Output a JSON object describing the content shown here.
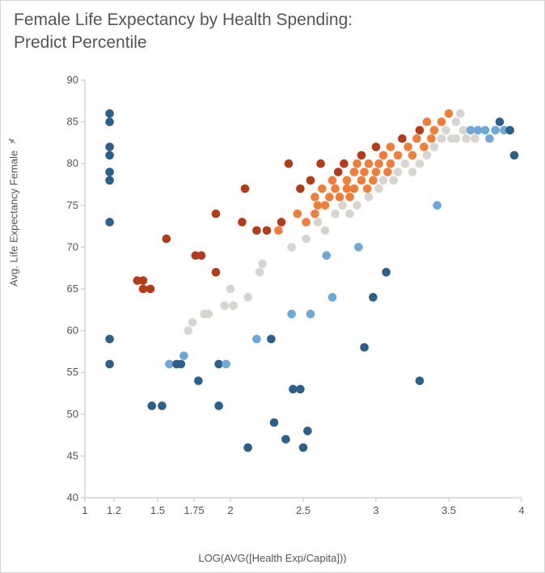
{
  "title_line1": "Female Life Expectancy by Health Spending:",
  "title_line2": "Predict Percentile",
  "xlabel": "LOG(AVG([Health Exp/Capita]))",
  "ylabel": "Avg. Life Expectancy Female",
  "chart": {
    "type": "scatter",
    "xlim": [
      1,
      4
    ],
    "ylim": [
      40,
      90
    ],
    "xticks": [
      1,
      1.2,
      1.5,
      1.75,
      2,
      2.5,
      3,
      3.5,
      4
    ],
    "yticks": [
      40,
      45,
      50,
      55,
      60,
      65,
      70,
      75,
      80,
      85,
      90
    ],
    "tick_length": 5,
    "marker_radius": 5.3,
    "marker_opacity": 1,
    "background_color": "#ffffff",
    "axis_color": "#bfbfbf",
    "tick_font_size": 13,
    "label_font_size": 13,
    "title_font_size": 21,
    "title_color": "#555555",
    "colors": {
      "dark_blue": "#2d5f8b",
      "light_blue": "#6fa8d6",
      "grey": "#d8d4cf",
      "orange": "#ee7e3b",
      "dark_red": "#b13c1a"
    },
    "points": [
      {
        "x": 1.17,
        "y": 86,
        "c": "dark_blue"
      },
      {
        "x": 1.17,
        "y": 85,
        "c": "dark_blue"
      },
      {
        "x": 1.17,
        "y": 82,
        "c": "dark_blue"
      },
      {
        "x": 1.17,
        "y": 81,
        "c": "dark_blue"
      },
      {
        "x": 1.17,
        "y": 79,
        "c": "dark_blue"
      },
      {
        "x": 1.17,
        "y": 78,
        "c": "dark_blue"
      },
      {
        "x": 1.17,
        "y": 73,
        "c": "dark_blue"
      },
      {
        "x": 1.17,
        "y": 59,
        "c": "dark_blue"
      },
      {
        "x": 1.17,
        "y": 56,
        "c": "dark_blue"
      },
      {
        "x": 1.36,
        "y": 66,
        "c": "dark_red"
      },
      {
        "x": 1.4,
        "y": 66,
        "c": "dark_red"
      },
      {
        "x": 1.4,
        "y": 65,
        "c": "dark_red"
      },
      {
        "x": 1.45,
        "y": 65,
        "c": "dark_red"
      },
      {
        "x": 1.46,
        "y": 51,
        "c": "dark_blue"
      },
      {
        "x": 1.53,
        "y": 51,
        "c": "dark_blue"
      },
      {
        "x": 1.56,
        "y": 71,
        "c": "dark_red"
      },
      {
        "x": 1.58,
        "y": 56,
        "c": "light_blue"
      },
      {
        "x": 1.63,
        "y": 56,
        "c": "dark_blue"
      },
      {
        "x": 1.68,
        "y": 57,
        "c": "light_blue"
      },
      {
        "x": 1.66,
        "y": 56,
        "c": "dark_blue"
      },
      {
        "x": 1.71,
        "y": 60,
        "c": "grey"
      },
      {
        "x": 1.74,
        "y": 61,
        "c": "grey"
      },
      {
        "x": 1.76,
        "y": 69,
        "c": "dark_red"
      },
      {
        "x": 1.8,
        "y": 69,
        "c": "dark_red"
      },
      {
        "x": 1.78,
        "y": 54,
        "c": "dark_blue"
      },
      {
        "x": 1.82,
        "y": 62,
        "c": "grey"
      },
      {
        "x": 1.85,
        "y": 62,
        "c": "grey"
      },
      {
        "x": 1.9,
        "y": 74,
        "c": "dark_red"
      },
      {
        "x": 1.9,
        "y": 67,
        "c": "dark_red"
      },
      {
        "x": 1.92,
        "y": 56,
        "c": "dark_blue"
      },
      {
        "x": 1.92,
        "y": 51,
        "c": "dark_blue"
      },
      {
        "x": 1.97,
        "y": 56,
        "c": "light_blue"
      },
      {
        "x": 1.96,
        "y": 63,
        "c": "grey"
      },
      {
        "x": 2.0,
        "y": 65,
        "c": "grey"
      },
      {
        "x": 2.02,
        "y": 63,
        "c": "grey"
      },
      {
        "x": 2.08,
        "y": 73,
        "c": "dark_red"
      },
      {
        "x": 2.1,
        "y": 77,
        "c": "dark_red"
      },
      {
        "x": 2.12,
        "y": 64,
        "c": "grey"
      },
      {
        "x": 2.12,
        "y": 46,
        "c": "dark_blue"
      },
      {
        "x": 2.18,
        "y": 59,
        "c": "light_blue"
      },
      {
        "x": 2.2,
        "y": 67,
        "c": "grey"
      },
      {
        "x": 2.18,
        "y": 72,
        "c": "dark_red"
      },
      {
        "x": 2.22,
        "y": 68,
        "c": "grey"
      },
      {
        "x": 2.25,
        "y": 72,
        "c": "dark_red"
      },
      {
        "x": 2.28,
        "y": 59,
        "c": "dark_blue"
      },
      {
        "x": 2.3,
        "y": 49,
        "c": "dark_blue"
      },
      {
        "x": 2.33,
        "y": 72,
        "c": "orange"
      },
      {
        "x": 2.35,
        "y": 73,
        "c": "dark_red"
      },
      {
        "x": 2.38,
        "y": 47,
        "c": "dark_blue"
      },
      {
        "x": 2.4,
        "y": 80,
        "c": "dark_red"
      },
      {
        "x": 2.42,
        "y": 70,
        "c": "grey"
      },
      {
        "x": 2.42,
        "y": 62,
        "c": "light_blue"
      },
      {
        "x": 2.43,
        "y": 53,
        "c": "dark_blue"
      },
      {
        "x": 2.46,
        "y": 74,
        "c": "orange"
      },
      {
        "x": 2.48,
        "y": 77,
        "c": "dark_red"
      },
      {
        "x": 2.48,
        "y": 53,
        "c": "dark_blue"
      },
      {
        "x": 2.5,
        "y": 46,
        "c": "dark_blue"
      },
      {
        "x": 2.52,
        "y": 73,
        "c": "orange"
      },
      {
        "x": 2.52,
        "y": 71,
        "c": "grey"
      },
      {
        "x": 2.53,
        "y": 48,
        "c": "dark_blue"
      },
      {
        "x": 2.55,
        "y": 78,
        "c": "dark_red"
      },
      {
        "x": 2.55,
        "y": 62,
        "c": "light_blue"
      },
      {
        "x": 2.58,
        "y": 74,
        "c": "orange"
      },
      {
        "x": 2.58,
        "y": 76,
        "c": "orange"
      },
      {
        "x": 2.6,
        "y": 75,
        "c": "orange"
      },
      {
        "x": 2.6,
        "y": 73,
        "c": "grey"
      },
      {
        "x": 2.62,
        "y": 80,
        "c": "dark_red"
      },
      {
        "x": 2.63,
        "y": 77,
        "c": "orange"
      },
      {
        "x": 2.65,
        "y": 75,
        "c": "orange"
      },
      {
        "x": 2.65,
        "y": 72,
        "c": "grey"
      },
      {
        "x": 2.66,
        "y": 69,
        "c": "light_blue"
      },
      {
        "x": 2.68,
        "y": 76,
        "c": "orange"
      },
      {
        "x": 2.7,
        "y": 78,
        "c": "orange"
      },
      {
        "x": 2.7,
        "y": 64,
        "c": "light_blue"
      },
      {
        "x": 2.72,
        "y": 77,
        "c": "orange"
      },
      {
        "x": 2.72,
        "y": 74,
        "c": "grey"
      },
      {
        "x": 2.74,
        "y": 79,
        "c": "dark_red"
      },
      {
        "x": 2.75,
        "y": 76,
        "c": "orange"
      },
      {
        "x": 2.77,
        "y": 75,
        "c": "grey"
      },
      {
        "x": 2.78,
        "y": 80,
        "c": "dark_red"
      },
      {
        "x": 2.8,
        "y": 78,
        "c": "orange"
      },
      {
        "x": 2.8,
        "y": 77,
        "c": "orange"
      },
      {
        "x": 2.82,
        "y": 76,
        "c": "orange"
      },
      {
        "x": 2.82,
        "y": 74,
        "c": "grey"
      },
      {
        "x": 2.85,
        "y": 79,
        "c": "orange"
      },
      {
        "x": 2.85,
        "y": 77,
        "c": "orange"
      },
      {
        "x": 2.87,
        "y": 80,
        "c": "orange"
      },
      {
        "x": 2.87,
        "y": 75,
        "c": "grey"
      },
      {
        "x": 2.88,
        "y": 70,
        "c": "light_blue"
      },
      {
        "x": 2.9,
        "y": 81,
        "c": "dark_red"
      },
      {
        "x": 2.9,
        "y": 78,
        "c": "orange"
      },
      {
        "x": 2.92,
        "y": 79,
        "c": "orange"
      },
      {
        "x": 2.92,
        "y": 58,
        "c": "dark_blue"
      },
      {
        "x": 2.94,
        "y": 77,
        "c": "orange"
      },
      {
        "x": 2.95,
        "y": 80,
        "c": "orange"
      },
      {
        "x": 2.95,
        "y": 76,
        "c": "grey"
      },
      {
        "x": 2.98,
        "y": 78,
        "c": "orange"
      },
      {
        "x": 2.98,
        "y": 64,
        "c": "dark_blue"
      },
      {
        "x": 3.0,
        "y": 82,
        "c": "dark_red"
      },
      {
        "x": 3.0,
        "y": 79,
        "c": "orange"
      },
      {
        "x": 3.02,
        "y": 80,
        "c": "orange"
      },
      {
        "x": 3.02,
        "y": 77,
        "c": "grey"
      },
      {
        "x": 3.05,
        "y": 81,
        "c": "orange"
      },
      {
        "x": 3.05,
        "y": 78,
        "c": "grey"
      },
      {
        "x": 3.07,
        "y": 67,
        "c": "dark_blue"
      },
      {
        "x": 3.08,
        "y": 79,
        "c": "orange"
      },
      {
        "x": 3.1,
        "y": 82,
        "c": "orange"
      },
      {
        "x": 3.1,
        "y": 80,
        "c": "orange"
      },
      {
        "x": 3.12,
        "y": 78,
        "c": "grey"
      },
      {
        "x": 3.15,
        "y": 81,
        "c": "orange"
      },
      {
        "x": 3.15,
        "y": 79,
        "c": "grey"
      },
      {
        "x": 3.18,
        "y": 83,
        "c": "dark_red"
      },
      {
        "x": 3.2,
        "y": 80,
        "c": "grey"
      },
      {
        "x": 3.22,
        "y": 82,
        "c": "orange"
      },
      {
        "x": 3.25,
        "y": 81,
        "c": "orange"
      },
      {
        "x": 3.25,
        "y": 79,
        "c": "grey"
      },
      {
        "x": 3.28,
        "y": 83,
        "c": "orange"
      },
      {
        "x": 3.3,
        "y": 84,
        "c": "dark_red"
      },
      {
        "x": 3.3,
        "y": 80,
        "c": "grey"
      },
      {
        "x": 3.3,
        "y": 54,
        "c": "dark_blue"
      },
      {
        "x": 3.33,
        "y": 82,
        "c": "orange"
      },
      {
        "x": 3.35,
        "y": 85,
        "c": "orange"
      },
      {
        "x": 3.35,
        "y": 81,
        "c": "grey"
      },
      {
        "x": 3.38,
        "y": 83,
        "c": "orange"
      },
      {
        "x": 3.4,
        "y": 84,
        "c": "orange"
      },
      {
        "x": 3.4,
        "y": 82,
        "c": "grey"
      },
      {
        "x": 3.42,
        "y": 75,
        "c": "light_blue"
      },
      {
        "x": 3.45,
        "y": 85,
        "c": "orange"
      },
      {
        "x": 3.45,
        "y": 83,
        "c": "grey"
      },
      {
        "x": 3.48,
        "y": 84,
        "c": "grey"
      },
      {
        "x": 3.5,
        "y": 86,
        "c": "orange"
      },
      {
        "x": 3.52,
        "y": 83,
        "c": "grey"
      },
      {
        "x": 3.55,
        "y": 85,
        "c": "grey"
      },
      {
        "x": 3.55,
        "y": 83,
        "c": "grey"
      },
      {
        "x": 3.58,
        "y": 86,
        "c": "grey"
      },
      {
        "x": 3.6,
        "y": 84,
        "c": "grey"
      },
      {
        "x": 3.62,
        "y": 83,
        "c": "grey"
      },
      {
        "x": 3.65,
        "y": 84,
        "c": "light_blue"
      },
      {
        "x": 3.68,
        "y": 83,
        "c": "grey"
      },
      {
        "x": 3.7,
        "y": 84,
        "c": "light_blue"
      },
      {
        "x": 3.75,
        "y": 84,
        "c": "light_blue"
      },
      {
        "x": 3.78,
        "y": 83,
        "c": "light_blue"
      },
      {
        "x": 3.82,
        "y": 84,
        "c": "light_blue"
      },
      {
        "x": 3.85,
        "y": 85,
        "c": "dark_blue"
      },
      {
        "x": 3.88,
        "y": 84,
        "c": "light_blue"
      },
      {
        "x": 3.92,
        "y": 84,
        "c": "dark_blue"
      },
      {
        "x": 3.95,
        "y": 81,
        "c": "dark_blue"
      }
    ]
  }
}
